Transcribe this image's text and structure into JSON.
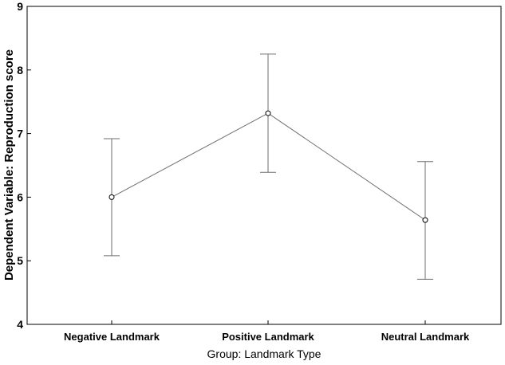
{
  "chart_data": {
    "type": "line",
    "title": "",
    "xlabel": "Group: Landmark Type",
    "ylabel": "Dependent Variable: Reproduction score",
    "ylim": [
      4,
      9
    ],
    "yticks": [
      "4",
      "5",
      "6",
      "7",
      "8",
      "9"
    ],
    "categories": [
      "Negative Landmark",
      "Positive Landmark",
      "Neutral Landmark"
    ],
    "series": [
      {
        "values": [
          6.0,
          7.32,
          5.64
        ],
        "error_lower": [
          5.08,
          6.39,
          4.71
        ],
        "error_upper": [
          6.92,
          8.25,
          6.56
        ]
      }
    ],
    "grid": false,
    "legend": "none",
    "colors": {
      "line": "#6e6e6e",
      "marker_fill": "#ffffff",
      "marker_stroke": "#000000",
      "frame": "#000000"
    }
  }
}
